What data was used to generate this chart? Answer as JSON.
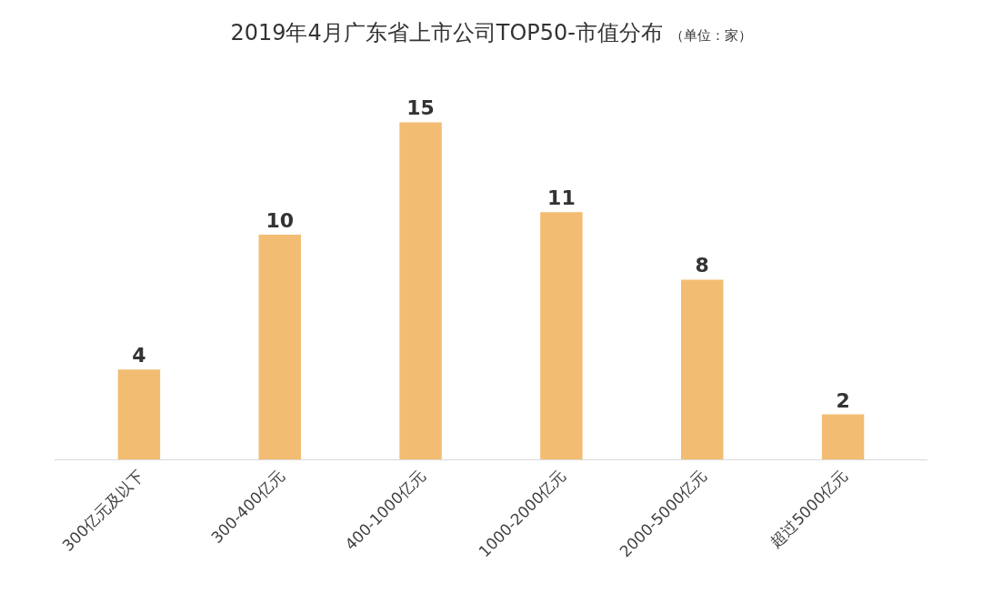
{
  "chart_data": {
    "type": "bar",
    "title": "2019年4月广东省上市公司TOP50-市值分布",
    "subtitle": "（单位：家）",
    "categories": [
      "300亿元及以下",
      "300-400亿元",
      "400-1000亿元",
      "1000-2000亿元",
      "2000-5000亿元",
      "超过5000亿元"
    ],
    "values": [
      4,
      10,
      15,
      11,
      8,
      2
    ],
    "color": "#f2bd72",
    "data_labels": true
  }
}
